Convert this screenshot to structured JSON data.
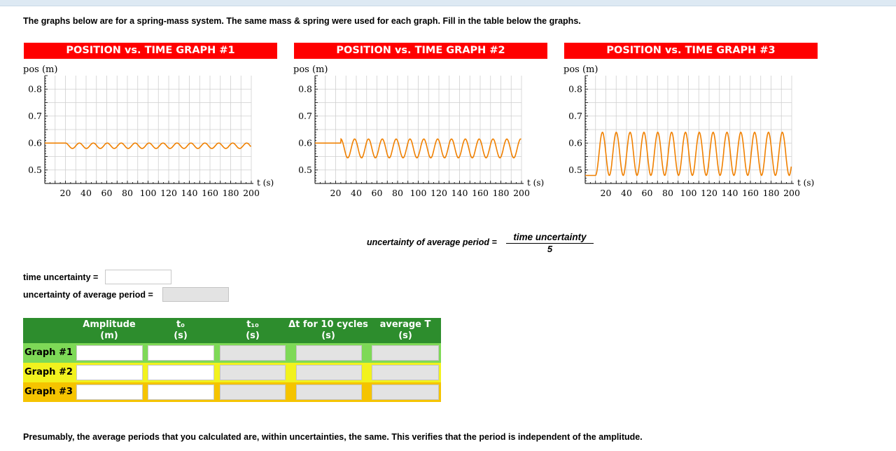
{
  "instructions": "The graphs below are for a spring-mass system. The same mass & spring were used for each graph. Fill in the table below the graphs.",
  "graphs": [
    {
      "title": "POSITION vs. TIME GRAPH #1",
      "ylabel": "pos (m)",
      "xlabel": "t (s)",
      "yticks": [
        "0.8",
        "0.7",
        "0.6",
        "0.5"
      ],
      "xticks": [
        "20",
        "40",
        "60",
        "80",
        "100",
        "120",
        "140",
        "160",
        "180",
        "200"
      ]
    },
    {
      "title": "POSITION vs. TIME GRAPH #2",
      "ylabel": "pos (m)",
      "xlabel": "t (s)",
      "yticks": [
        "0.8",
        "0.7",
        "0.6",
        "0.5"
      ],
      "xticks": [
        "20",
        "40",
        "60",
        "80",
        "100",
        "120",
        "140",
        "160",
        "180",
        "200"
      ]
    },
    {
      "title": "POSITION vs. TIME GRAPH #3",
      "ylabel": "pos (m)",
      "xlabel": "t (s)",
      "yticks": [
        "0.8",
        "0.7",
        "0.6",
        "0.5"
      ],
      "xticks": [
        "20",
        "40",
        "60",
        "80",
        "100",
        "120",
        "140",
        "160",
        "180",
        "200"
      ]
    }
  ],
  "chart_data": [
    {
      "type": "line",
      "title": "POSITION vs. TIME GRAPH #1",
      "xlabel": "t (s)",
      "ylabel": "pos (m)",
      "xlim": [
        0,
        200
      ],
      "ylim": [
        0.45,
        0.85
      ],
      "series": [
        {
          "values_description_x": [
            0,
            200
          ],
          "equilibrium": 0.6,
          "start_value": 0.6,
          "release_time": 20,
          "amplitude": 0.02,
          "period": 13.5
        }
      ]
    },
    {
      "type": "line",
      "title": "POSITION vs. TIME GRAPH #2",
      "xlabel": "t (s)",
      "ylabel": "pos (m)",
      "xlim": [
        0,
        200
      ],
      "ylim": [
        0.45,
        0.85
      ],
      "series": [
        {
          "values_description_x": [
            0,
            200
          ],
          "equilibrium": 0.58,
          "start_value": 0.6,
          "release_time": 25,
          "amplitude": 0.035,
          "period": 13.4
        }
      ]
    },
    {
      "type": "line",
      "title": "POSITION vs. TIME GRAPH #3",
      "xlabel": "t (s)",
      "ylabel": "pos (m)",
      "xlim": [
        0,
        200
      ],
      "ylim": [
        0.45,
        0.85
      ],
      "series": [
        {
          "values_description_x": [
            0,
            200
          ],
          "equilibrium": 0.56,
          "start_value": 0.48,
          "release_time": 10,
          "amplitude": 0.08,
          "period": 13.4
        }
      ]
    }
  ],
  "formula": {
    "lhs": "uncertainty of average period =",
    "numerator": "time uncertainty",
    "denominator": "5"
  },
  "labels": {
    "time_uncertainty": "time uncertainty =",
    "uncertainty_avg_period": "uncertainty of average period ="
  },
  "table": {
    "headers": [
      {
        "line1": "Amplitude",
        "line2": "(m)"
      },
      {
        "line1": "t₀",
        "line2": "(s)"
      },
      {
        "line1": "t₁₀",
        "line2": "(s)"
      },
      {
        "line1": "Δt for 10 cycles",
        "line2": "(s)"
      },
      {
        "line1": "average T",
        "line2": "(s)"
      }
    ],
    "rows": [
      {
        "label": "Graph #1",
        "color": "#7ed957"
      },
      {
        "label": "Graph #2",
        "color": "#f2f21e"
      },
      {
        "label": "Graph #3",
        "color": "#f5c400"
      }
    ]
  },
  "footer": "Presumably, the average periods that you calculated are, within uncertainties, the same. This verifies that the period is independent of the amplitude.",
  "colors": {
    "title_bg": "#ff0000",
    "curve": "#f08000",
    "header_bg": "#2d8d2d"
  }
}
